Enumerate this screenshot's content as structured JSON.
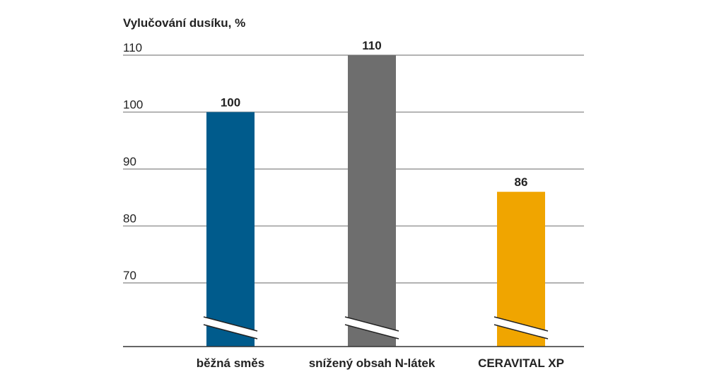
{
  "chart_data": {
    "type": "bar",
    "ylabel": "Vylučování dusíku, %",
    "categories": [
      "běžná směs",
      "snížený obsah N-látek",
      "CERAVITAL XP"
    ],
    "values": [
      100,
      110,
      86
    ],
    "value_labels": [
      "100",
      "110",
      "86"
    ],
    "colors": [
      "#005b8c",
      "#6e6e6e",
      "#f0a500"
    ],
    "y_ticks": [
      110,
      100,
      90,
      80,
      70
    ],
    "ylim": [
      59,
      110
    ],
    "axis_break": true,
    "grid": true
  }
}
